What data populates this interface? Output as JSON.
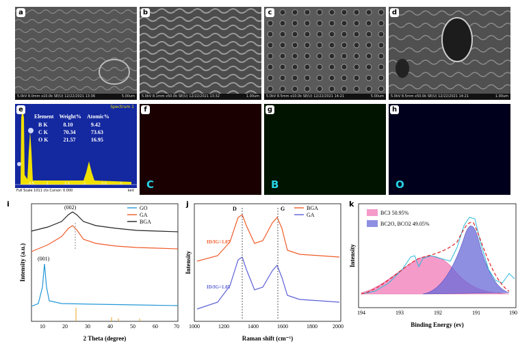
{
  "panels": {
    "a": {
      "label": "a",
      "left": "5.0kV 8.0mm x10.0k SE(U) 12/22/2021 13:36",
      "right": "5.00um"
    },
    "b": {
      "label": "b",
      "left": "5.0kV 8.1mm x50.0k SE(U) 12/22/2021 13:32",
      "right": "1.00um"
    },
    "c": {
      "label": "c",
      "left": "5.0kV 8.5mm x10.0k SE(U) 12/22/2021 14:21",
      "right": "5.00um"
    },
    "d": {
      "label": "d",
      "left": "5.0kV 8.5mm x50.0k SE(U) 12/22/2021 14:21",
      "right": "1.00um"
    },
    "e": {
      "label": "e"
    },
    "f": {
      "label": "f",
      "element": "C",
      "color": "#26d4e6"
    },
    "g": {
      "label": "g",
      "element": "B",
      "color": "#26d4e6"
    },
    "h": {
      "label": "h",
      "element": "O",
      "color": "#26d4e6"
    },
    "i": {
      "label": "i"
    },
    "j": {
      "label": "j"
    },
    "k": {
      "label": "k"
    }
  },
  "eds": {
    "spectrum_label": "Spectrum 1",
    "headers": [
      "Element",
      "Weight%",
      "Atomic%"
    ],
    "rows": [
      [
        "B K",
        "8.10",
        "9.42"
      ],
      [
        "C K",
        "70.34",
        "73.63"
      ],
      [
        "O K",
        "21.57",
        "16.95"
      ]
    ],
    "ticks": [
      "0.5",
      "1",
      "1.5",
      "2",
      "2.5",
      "3"
    ],
    "footer_left": "Full Scale 1011 cts Cursor: 0.000",
    "footer_right": "keV"
  },
  "chart_data": [
    {
      "type": "line",
      "panel": "i",
      "xlabel": "2 Theta (degree)",
      "ylabel": "Intensity (a.u.)",
      "xlim": [
        5,
        70
      ],
      "xticks": [
        "10",
        "20",
        "30",
        "40",
        "50",
        "60",
        "70"
      ],
      "annotations": [
        "(002)",
        "(001)"
      ],
      "series": [
        {
          "name": "GO",
          "color": "#2196d6"
        },
        {
          "name": "GA",
          "color": "#f05a28"
        },
        {
          "name": "BGA",
          "color": "#222222"
        }
      ]
    },
    {
      "type": "line",
      "panel": "j",
      "xlabel": "Raman shift (cm⁻¹)",
      "ylabel": "Intensity",
      "xlim": [
        1000,
        2000
      ],
      "xticks": [
        "1000",
        "1200",
        "1400",
        "1600",
        "1800",
        "2000"
      ],
      "annotations": [
        "D",
        "G",
        "ID/IG=1.07",
        "ID/IG=1.05"
      ],
      "series": [
        {
          "name": "BGA",
          "color": "#f05a28"
        },
        {
          "name": "GA",
          "color": "#5b5fd6"
        }
      ]
    },
    {
      "type": "line",
      "panel": "k",
      "xlabel": "Binding Energy (ev)",
      "ylabel": "Intensity",
      "xlim": [
        194,
        190
      ],
      "xticks": [
        "194",
        "193",
        "192",
        "191",
        "190"
      ],
      "legend": [
        "BC3 50.95%",
        "BC2O, BCO2 49.05%"
      ],
      "colors": {
        "peak1": "#f07ab8",
        "peak2": "#6a6ad8",
        "data": "#2ab8d8",
        "fit": "#e02020"
      }
    }
  ]
}
